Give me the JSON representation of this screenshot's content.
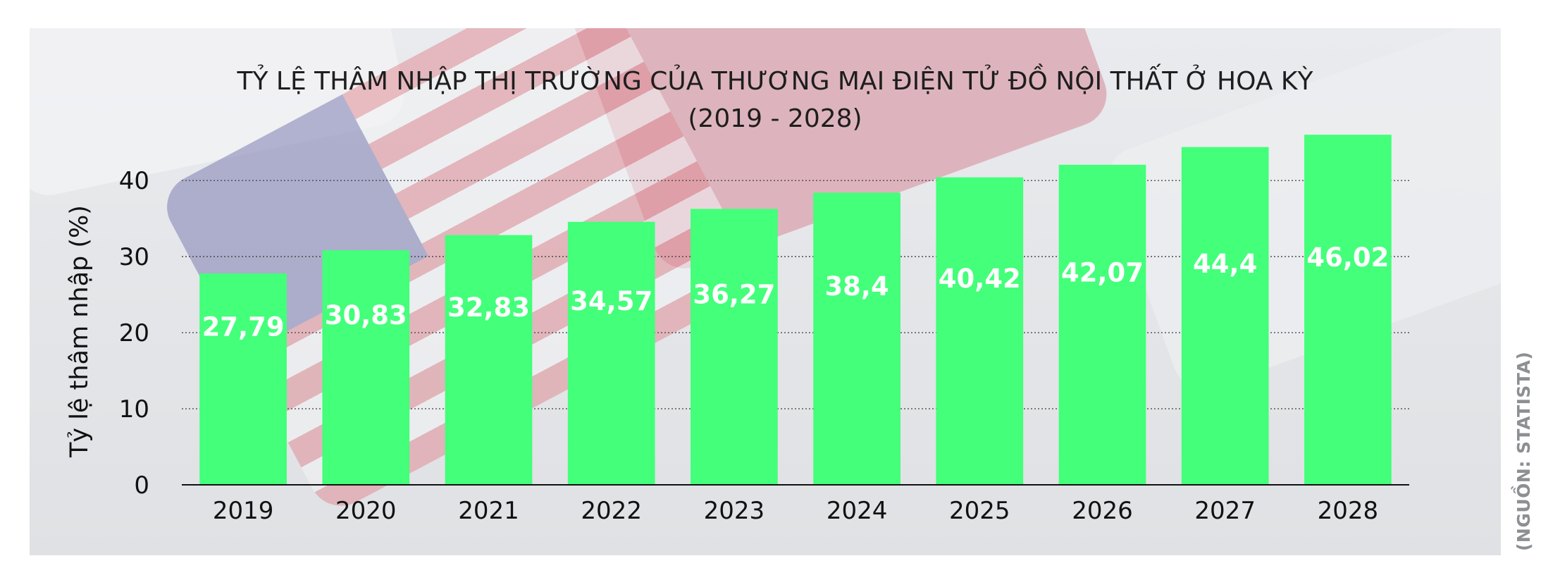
{
  "chart_data": {
    "type": "bar",
    "title": "TỶ LỆ THÂM NHẬP THỊ TRƯỜNG CỦA THƯƠNG MẠI ĐIỆN TỬ ĐỒ NỘI THẤT Ở HOA KỲ",
    "subtitle": "(2019 - 2028)",
    "ylabel": "Tỷ lệ thâm nhập (%)",
    "xlabel": "",
    "categories": [
      "2019",
      "2020",
      "2021",
      "2022",
      "2023",
      "2024",
      "2025",
      "2026",
      "2027",
      "2028"
    ],
    "values": [
      27.79,
      30.83,
      32.83,
      34.57,
      36.27,
      38.4,
      40.42,
      42.07,
      44.4,
      46.02
    ],
    "value_labels": [
      "27,79",
      "30,83",
      "32,83",
      "34,57",
      "36,27",
      "38,4",
      "40,42",
      "42,07",
      "44,4",
      "46,02"
    ],
    "ylim": [
      0,
      46.5
    ],
    "yticks": [
      0,
      10,
      20,
      30,
      40
    ],
    "grid": true,
    "bar_color": "#43ff7a",
    "legend": null
  },
  "source": "(NGUỒN: STATISTA)"
}
